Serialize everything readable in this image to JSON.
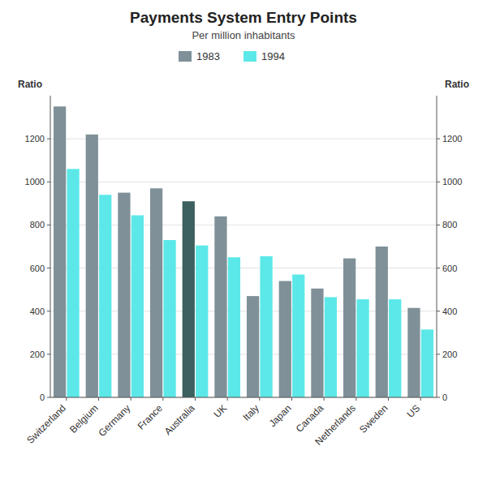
{
  "chart_data": {
    "type": "bar",
    "title": "Payments System Entry Points",
    "subtitle": "Per million inhabitants",
    "ylabel": "Ratio",
    "y2label": "Ratio",
    "categories": [
      "Switzerland",
      "Belgium",
      "Germany",
      "France",
      "Australia",
      "UK",
      "Italy",
      "Japan",
      "Canada",
      "Netherlands",
      "Sweden",
      "US"
    ],
    "series": [
      {
        "name": "1983",
        "color": "#7f9098",
        "colors": [
          "#7f9098",
          "#7f9098",
          "#7f9098",
          "#7f9098",
          "#3d6060",
          "#7f9098",
          "#7f9098",
          "#7f9098",
          "#7f9098",
          "#7f9098",
          "#7f9098",
          "#7f9098"
        ],
        "values": [
          1350,
          1220,
          950,
          970,
          910,
          840,
          470,
          540,
          505,
          645,
          700,
          415
        ]
      },
      {
        "name": "1994",
        "color": "#5ce8e8",
        "values": [
          1060,
          940,
          845,
          730,
          705,
          650,
          655,
          570,
          465,
          455,
          455,
          315
        ]
      }
    ],
    "ylim": [
      0,
      1400
    ],
    "yticks": [
      0,
      200,
      400,
      600,
      800,
      1000,
      1200
    ],
    "y2lim": [
      0,
      1400
    ],
    "y2ticks": [
      0,
      200,
      400,
      600,
      800,
      1000,
      1200
    ],
    "grid": true,
    "legend": "top"
  }
}
